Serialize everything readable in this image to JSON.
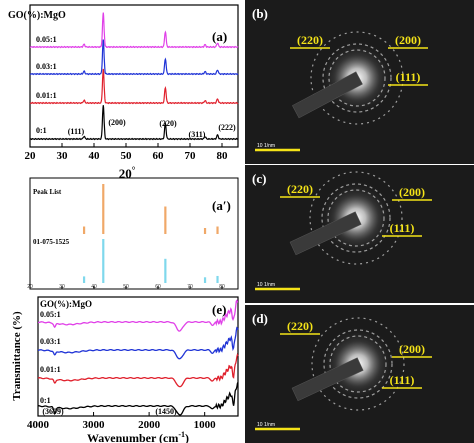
{
  "figure": {
    "panel_labels": {
      "a": "(a)",
      "a_prime": "(a′)",
      "b": "(b)",
      "c": "(c)",
      "d": "(d)",
      "e": "(e)"
    }
  },
  "chart_data": [
    {
      "id": "xrd",
      "panel": "(a)",
      "type": "line",
      "header": "GO(%):MgO",
      "xlabel": "2θ °",
      "xlabel_main": "20",
      "xlabel_sup": "°",
      "xlim": [
        20,
        85
      ],
      "xticks": [
        20,
        30,
        40,
        50,
        60,
        70,
        80
      ],
      "peak_positions": [
        36.9,
        42.9,
        62.3,
        74.7,
        78.6
      ],
      "peak_heights": [
        0.08,
        1.0,
        0.45,
        0.07,
        0.12
      ],
      "series": [
        {
          "name": "0:1",
          "color": "#000000"
        },
        {
          "name": "0.01:1",
          "color": "#e0202c"
        },
        {
          "name": "0.03:1",
          "color": "#1f33d6"
        },
        {
          "name": "0.05:1",
          "color": "#e040e8"
        }
      ],
      "peak_labels": [
        {
          "text": "(111)",
          "x": 36.9
        },
        {
          "text": "(200)",
          "x": 42.9
        },
        {
          "text": "(220)",
          "x": 62.3
        },
        {
          "text": "(311)",
          "x": 74.7
        },
        {
          "text": "(222)",
          "x": 78.6
        }
      ]
    },
    {
      "id": "peaklist",
      "panel": "(a′)",
      "type": "bar",
      "xlim": [
        20,
        85
      ],
      "xticks": [
        20,
        30,
        40,
        50,
        60,
        70,
        80
      ],
      "series": [
        {
          "name": "Peak List",
          "color": "#f0a868",
          "x": [
            36.9,
            42.9,
            62.3,
            74.7,
            78.6
          ],
          "values": [
            0.15,
            1.0,
            0.55,
            0.12,
            0.15
          ]
        },
        {
          "name": "01-075-1525",
          "color": "#7fd8ec",
          "x": [
            36.9,
            42.9,
            62.3,
            74.7,
            78.6
          ],
          "values": [
            0.15,
            1.0,
            0.55,
            0.13,
            0.16
          ]
        }
      ]
    },
    {
      "id": "ftir",
      "panel": "(e)",
      "type": "line",
      "header": "GO(%):MgO",
      "xlabel": "Wavenumber (cm-1)",
      "xlabel_main": "Wavenumber (cm",
      "xlabel_sup": "-1",
      "xlabel_end": ")",
      "ylabel": "Transmittance (%)",
      "xlim": [
        4000,
        400
      ],
      "xticks": [
        4000,
        3000,
        2000,
        1000
      ],
      "annotations": [
        {
          "text": "(3699)",
          "x": 3699
        },
        {
          "text": "(1450)",
          "x": 1450
        }
      ],
      "series": [
        {
          "name": "0:1",
          "color": "#000000"
        },
        {
          "name": "0.01:1",
          "color": "#e0202c"
        },
        {
          "name": "0.03:1",
          "color": "#1f33d6"
        },
        {
          "name": "0.05:1",
          "color": "#e040e8"
        }
      ]
    }
  ],
  "saed": [
    {
      "panel": "(b)",
      "labels": [
        "(220)",
        "(200)",
        "(111)"
      ],
      "scale": "10 1/nm"
    },
    {
      "panel": "(c)",
      "labels": [
        "(220)",
        "(200)",
        "(111)"
      ],
      "scale": "10 1/nm"
    },
    {
      "panel": "(d)",
      "labels": [
        "(220)",
        "(200)",
        "(111)"
      ],
      "scale": "10 1/nm"
    }
  ]
}
